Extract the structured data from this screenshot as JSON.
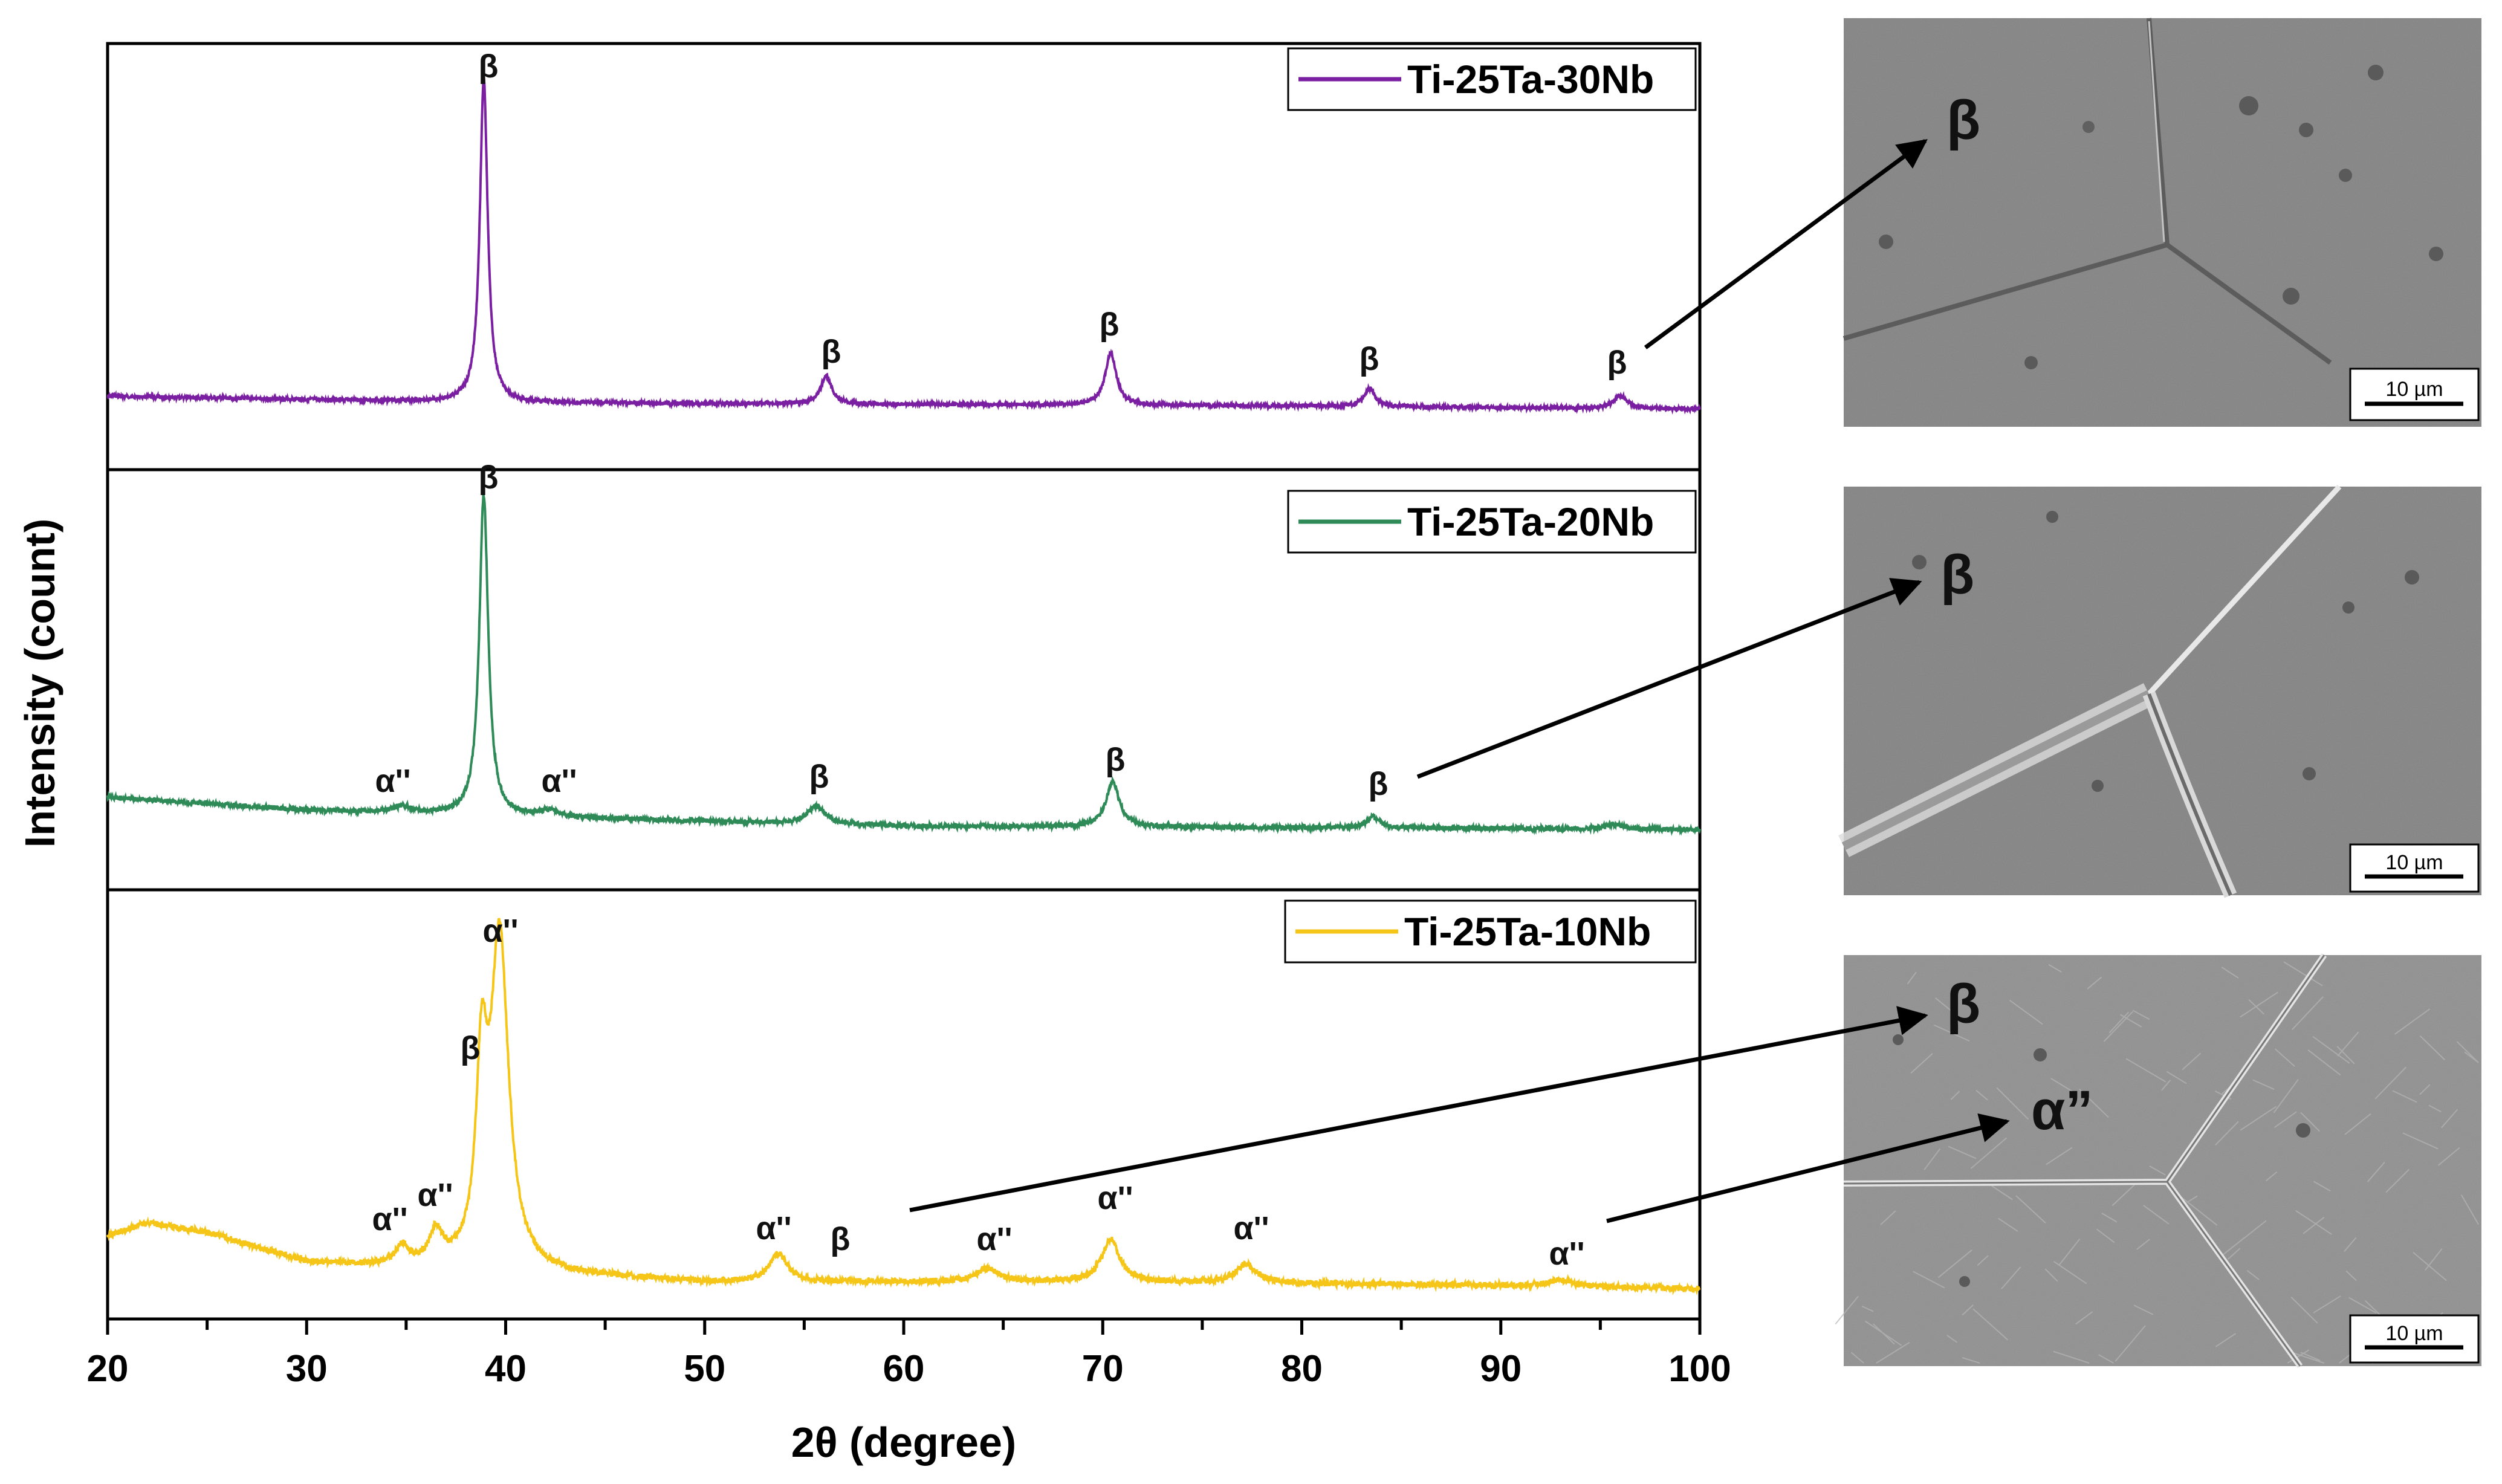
{
  "chart_data": {
    "type": "line",
    "xlabel": "2θ (degree)",
    "ylabel": "Intensity (count)",
    "xlim": [
      20,
      100
    ],
    "x_ticks": [
      20,
      30,
      40,
      50,
      60,
      70,
      80,
      90,
      100
    ],
    "x_tick_labels": [
      "20",
      "30",
      "40",
      "50",
      "60",
      "70",
      "80",
      "90",
      "100"
    ],
    "y_ticks_shown": false,
    "panels": [
      {
        "name": "Ti-25Ta-30Nb",
        "color": "#7B1FA2",
        "legend": "Ti-25Ta-30Nb",
        "baseline": [
          [
            20,
            0.04
          ],
          [
            40,
            0.02
          ],
          [
            60,
            0.015
          ],
          [
            80,
            0.01
          ],
          [
            100,
            0.0
          ]
        ],
        "peaks": [
          {
            "center": 38.9,
            "height": 1.0,
            "width": 0.35,
            "label": "β"
          },
          {
            "center": 56.1,
            "height": 0.085,
            "width": 0.5,
            "label": "β"
          },
          {
            "center": 70.4,
            "height": 0.16,
            "width": 0.5,
            "label": "β"
          },
          {
            "center": 83.4,
            "height": 0.055,
            "width": 0.5,
            "label": "β"
          },
          {
            "center": 96.0,
            "height": 0.04,
            "width": 0.6,
            "label": "β"
          }
        ]
      },
      {
        "name": "Ti-25Ta-20Nb",
        "color": "#2E8B57",
        "legend": "Ti-25Ta-20Nb",
        "baseline": [
          [
            20,
            0.1
          ],
          [
            30,
            0.06
          ],
          [
            40,
            0.04
          ],
          [
            60,
            0.01
          ],
          [
            80,
            0.005
          ],
          [
            100,
            0.0
          ]
        ],
        "peaks": [
          {
            "center": 34.8,
            "height": 0.02,
            "width": 0.8,
            "label": "α''"
          },
          {
            "center": 38.9,
            "height": 1.0,
            "width": 0.4,
            "label": "β"
          },
          {
            "center": 42.2,
            "height": 0.02,
            "width": 0.8,
            "label": "α''"
          },
          {
            "center": 55.6,
            "height": 0.055,
            "width": 0.8,
            "label": "β"
          },
          {
            "center": 70.5,
            "height": 0.14,
            "width": 0.6,
            "label": "β"
          },
          {
            "center": 83.6,
            "height": 0.035,
            "width": 0.6,
            "label": "β"
          },
          {
            "center": 95.7,
            "height": 0.015,
            "width": 0.8,
            "label": ""
          }
        ]
      },
      {
        "name": "Ti-25Ta-10Nb",
        "color": "#F5C518",
        "legend": "Ti-25Ta-10Nb",
        "baseline": [
          [
            20,
            0.16
          ],
          [
            22,
            0.2
          ],
          [
            25,
            0.17
          ],
          [
            30,
            0.08
          ],
          [
            35,
            0.06
          ],
          [
            40,
            0.05
          ],
          [
            50,
            0.02
          ],
          [
            70,
            0.02
          ],
          [
            90,
            0.01
          ],
          [
            100,
            0.0
          ]
        ],
        "peaks": [
          {
            "center": 34.8,
            "height": 0.06,
            "width": 0.6,
            "label": "α''"
          },
          {
            "center": 36.5,
            "height": 0.1,
            "width": 0.6,
            "label": "α''"
          },
          {
            "center": 38.8,
            "height": 0.55,
            "width": 0.5,
            "label": "β"
          },
          {
            "center": 39.7,
            "height": 1.0,
            "width": 0.8,
            "label": "α''"
          },
          {
            "center": 53.7,
            "height": 0.085,
            "width": 0.8,
            "label": "α''"
          },
          {
            "center": 56.8,
            "height": 0.0,
            "width": 0.8,
            "label": "β"
          },
          {
            "center": 64.2,
            "height": 0.04,
            "width": 1.0,
            "label": "α''"
          },
          {
            "center": 70.4,
            "height": 0.13,
            "width": 0.8,
            "label": "α''"
          },
          {
            "center": 77.2,
            "height": 0.055,
            "width": 1.0,
            "label": "α''"
          },
          {
            "center": 93.0,
            "height": 0.02,
            "width": 1.0,
            "label": "α''"
          }
        ]
      }
    ]
  },
  "micrographs": [
    {
      "name": "Ti-25Ta-30Nb",
      "phase_labels": [
        "β"
      ],
      "scale_bar": "10 µm"
    },
    {
      "name": "Ti-25Ta-20Nb",
      "phase_labels": [
        "β"
      ],
      "scale_bar": "10 µm"
    },
    {
      "name": "Ti-25Ta-10Nb",
      "phase_labels": [
        "β",
        "α”"
      ],
      "scale_bar": "10 µm"
    }
  ],
  "colors": {
    "axis": "#000000",
    "sem_bg": "#8d8d8d",
    "sem_light": "#c9c9c9",
    "sem_dark": "#5e5e5e"
  }
}
